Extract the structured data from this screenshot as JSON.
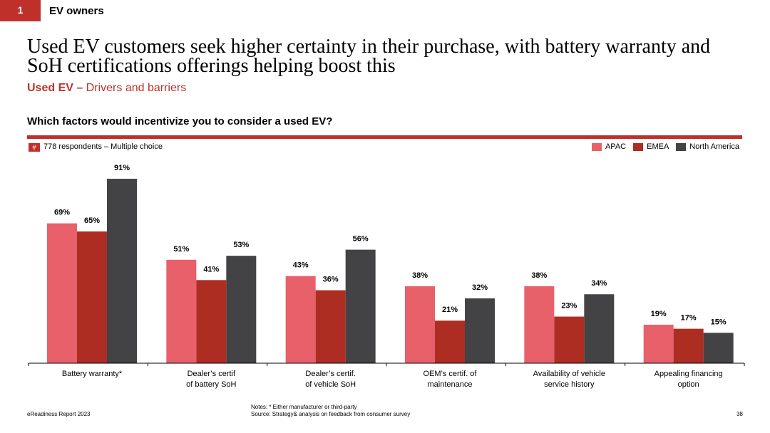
{
  "section": {
    "number": "1",
    "title": "EV owners"
  },
  "headline": "Used EV customers seek higher certainty in their purchase, with battery warranty and SoH certifications offerings helping boost this",
  "subhead": {
    "bold": "Used EV –",
    "rest": " Drivers and barriers"
  },
  "question": "Which factors would incentivize you to consider a used EV?",
  "respondents": {
    "badge": "#",
    "text": "778 respondents – Multiple choice"
  },
  "colors": {
    "accent": "#c0302b",
    "apac": "#e8606a",
    "emea": "#ae2d23",
    "north_america": "#434244"
  },
  "chart_data": {
    "type": "bar",
    "categories": [
      [
        "Battery warranty*"
      ],
      [
        "Dealer’s certif",
        "of battery SoH"
      ],
      [
        "Dealer’s certif.",
        "of vehicle SoH"
      ],
      [
        "OEM’s certif. of",
        "maintenance"
      ],
      [
        "Availability of vehicle",
        "service history"
      ],
      [
        "Appealing financing",
        "option"
      ]
    ],
    "series": [
      {
        "name": "APAC",
        "color": "#e8606a",
        "values": [
          69,
          51,
          43,
          38,
          38,
          19
        ]
      },
      {
        "name": "EMEA",
        "color": "#ae2d23",
        "values": [
          65,
          41,
          36,
          21,
          23,
          17
        ]
      },
      {
        "name": "North America",
        "color": "#434244",
        "values": [
          91,
          53,
          56,
          32,
          34,
          15
        ]
      }
    ],
    "value_suffix": "%",
    "ylim": [
      0,
      100
    ],
    "grid": false,
    "legend": "top-right"
  },
  "footer": {
    "left": "eReadiness Report 2023",
    "notes": "Notes: * Either manufacturer or third-party",
    "source": "Source: Strategy& analysis on feedback from consumer survey",
    "page": "38"
  }
}
